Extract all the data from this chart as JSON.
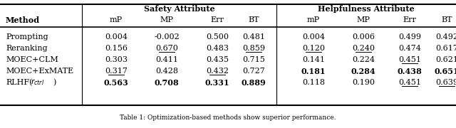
{
  "rows": [
    {
      "method": "Prompting",
      "method_italic_r": false,
      "safety": [
        "0.004",
        "-0.002",
        "0.500",
        "0.481"
      ],
      "helpfulness": [
        "0.004",
        "0.006",
        "0.499",
        "0.492"
      ],
      "safety_bold": [
        false,
        false,
        false,
        false
      ],
      "safety_underline": [
        false,
        false,
        false,
        false
      ],
      "help_bold": [
        false,
        false,
        false,
        false
      ],
      "help_underline": [
        false,
        false,
        false,
        false
      ]
    },
    {
      "method": "Reranking",
      "method_italic_r": false,
      "safety": [
        "0.156",
        "0.670",
        "0.483",
        "0.859"
      ],
      "helpfulness": [
        "0.120",
        "0.240",
        "0.474",
        "0.617"
      ],
      "safety_bold": [
        false,
        false,
        false,
        false
      ],
      "safety_underline": [
        false,
        true,
        false,
        true
      ],
      "help_bold": [
        false,
        false,
        false,
        false
      ],
      "help_underline": [
        true,
        true,
        false,
        false
      ]
    },
    {
      "method": "MOEC+CLM",
      "method_italic_r": false,
      "safety": [
        "0.303",
        "0.411",
        "0.435",
        "0.715"
      ],
      "helpfulness": [
        "0.141",
        "0.224",
        "0.451",
        "0.621"
      ],
      "safety_bold": [
        false,
        false,
        false,
        false
      ],
      "safety_underline": [
        false,
        false,
        false,
        false
      ],
      "help_bold": [
        false,
        false,
        false,
        false
      ],
      "help_underline": [
        false,
        false,
        true,
        false
      ]
    },
    {
      "method": "MOEC+ExMATE",
      "method_italic_r": false,
      "safety": [
        "0.317",
        "0.428",
        "0.432",
        "0.727"
      ],
      "helpfulness": [
        "0.181",
        "0.284",
        "0.438",
        "0.651"
      ],
      "safety_bold": [
        false,
        false,
        false,
        false
      ],
      "safety_underline": [
        true,
        false,
        true,
        false
      ],
      "help_bold": [
        true,
        true,
        true,
        true
      ],
      "help_underline": [
        false,
        false,
        false,
        false
      ]
    },
    {
      "method": "RLHF",
      "method_italic_r": true,
      "safety": [
        "0.563",
        "0.708",
        "0.331",
        "0.889"
      ],
      "helpfulness": [
        "0.118",
        "0.190",
        "0.451",
        "0.639"
      ],
      "safety_bold": [
        true,
        true,
        true,
        true
      ],
      "safety_underline": [
        false,
        false,
        false,
        false
      ],
      "help_bold": [
        false,
        false,
        false,
        false
      ],
      "help_underline": [
        false,
        false,
        true,
        true
      ]
    }
  ],
  "bg_color": "#ffffff",
  "font_size": 8.0,
  "caption": "Table 1: Optimization-based methods show superior performance.",
  "header1_safety": "Safety Attribute",
  "header1_help": "Helpfulness Attribute",
  "sub_labels": [
    "mP",
    "MP",
    "Err",
    "BT"
  ],
  "method_header": "Method"
}
